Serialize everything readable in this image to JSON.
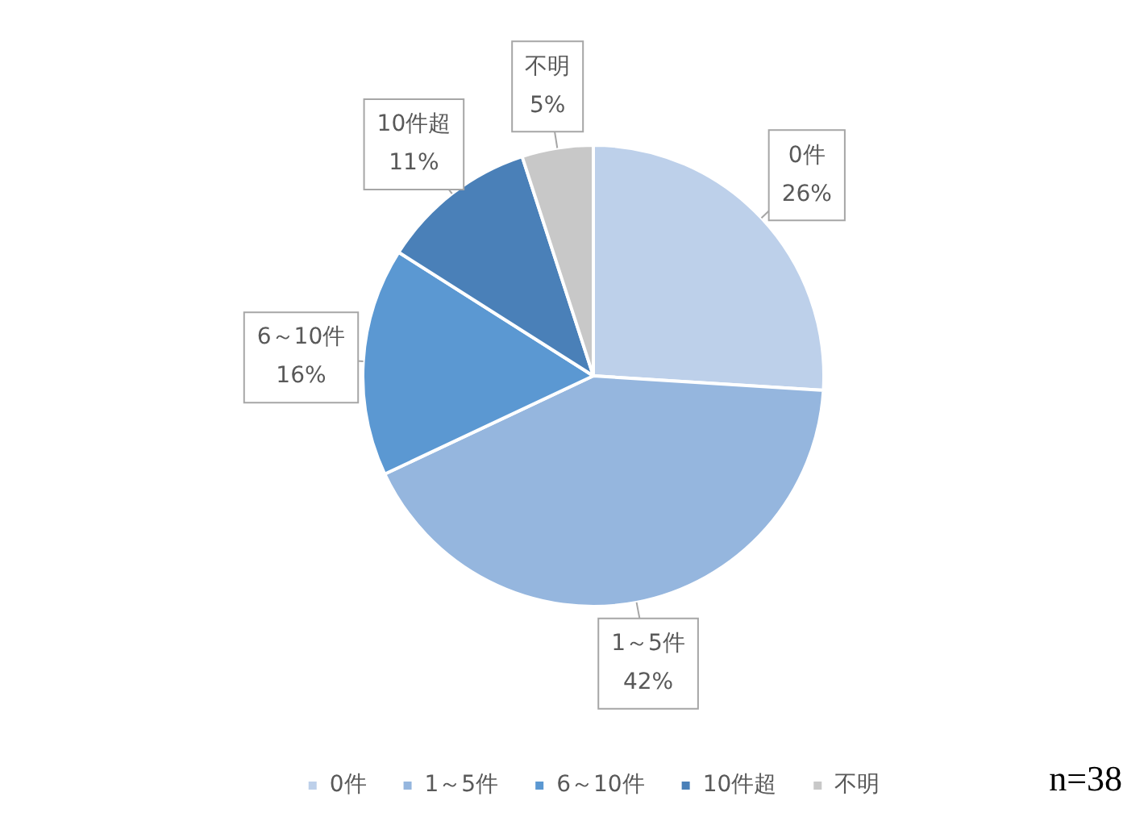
{
  "chart_data": {
    "type": "pie",
    "categories": [
      "0件",
      "1～5件",
      "6～10件",
      "10件超",
      "不明"
    ],
    "values": [
      26,
      42,
      16,
      11,
      5
    ],
    "value_labels": [
      "26%",
      "42%",
      "16%",
      "11%",
      "5%"
    ],
    "colors": [
      "#bdd0ea",
      "#95b6de",
      "#5b98d2",
      "#4a80b8",
      "#c8c8c8"
    ],
    "legend": "bottom",
    "annotations": [
      "n=38"
    ]
  }
}
